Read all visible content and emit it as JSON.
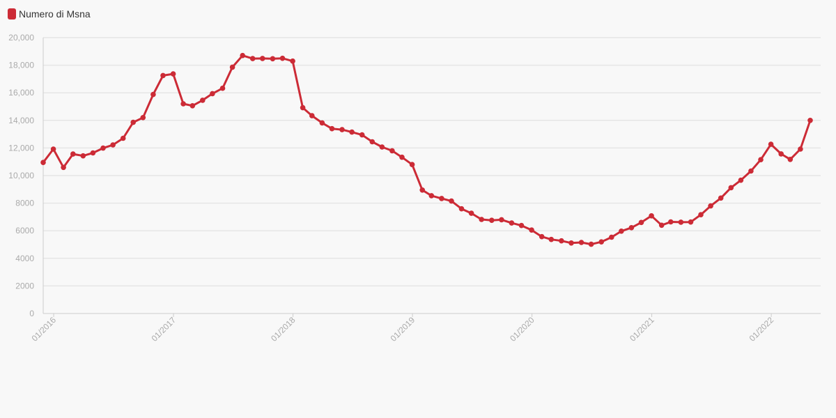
{
  "chart_data": {
    "type": "line",
    "legend_position": "top-left",
    "grid": true,
    "colors": {
      "series": "#cc2b36",
      "grid": "#e6e6e6",
      "axis": "#cccccc",
      "tick_text": "#aaaaaa"
    },
    "ylim": [
      0,
      20000
    ],
    "y_ticks": [
      0,
      2000,
      4000,
      6000,
      8000,
      10000,
      12000,
      14000,
      16000,
      18000,
      20000
    ],
    "y_tick_labels": [
      "0",
      "2000",
      "4000",
      "6000",
      "8000",
      "10,000",
      "12,000",
      "14,000",
      "16,000",
      "18,000",
      "20,000"
    ],
    "x_tick_labels": [
      "01/2016",
      "01/2017",
      "01/2018",
      "01/2019",
      "01/2020",
      "01/2021",
      "01/2022"
    ],
    "x_tick_dates": [
      "2016-01",
      "2017-01",
      "2018-01",
      "2019-01",
      "2020-01",
      "2021-01",
      "2022-01"
    ],
    "series": [
      {
        "name": "Numero di Msna",
        "points": [
          [
            "2015-11-30",
            10950
          ],
          [
            "2015-12-31",
            11920
          ],
          [
            "2016-01-31",
            10590
          ],
          [
            "2016-02-29",
            11560
          ],
          [
            "2016-03-31",
            11430
          ],
          [
            "2016-04-30",
            11640
          ],
          [
            "2016-05-31",
            11990
          ],
          [
            "2016-06-30",
            12220
          ],
          [
            "2016-07-31",
            12700
          ],
          [
            "2016-08-31",
            13860
          ],
          [
            "2016-09-30",
            14200
          ],
          [
            "2016-10-31",
            15880
          ],
          [
            "2016-11-30",
            17250
          ],
          [
            "2016-12-31",
            17370
          ],
          [
            "2017-01-31",
            15200
          ],
          [
            "2017-02-28",
            15060
          ],
          [
            "2017-03-31",
            15460
          ],
          [
            "2017-04-30",
            15940
          ],
          [
            "2017-05-31",
            16330
          ],
          [
            "2017-06-30",
            17860
          ],
          [
            "2017-07-31",
            18700
          ],
          [
            "2017-08-31",
            18480
          ],
          [
            "2017-09-30",
            18490
          ],
          [
            "2017-10-31",
            18470
          ],
          [
            "2017-11-30",
            18500
          ],
          [
            "2017-12-31",
            18300
          ],
          [
            "2018-01-31",
            14920
          ],
          [
            "2018-02-28",
            14340
          ],
          [
            "2018-03-31",
            13820
          ],
          [
            "2018-04-30",
            13400
          ],
          [
            "2018-05-31",
            13330
          ],
          [
            "2018-06-30",
            13150
          ],
          [
            "2018-07-31",
            12950
          ],
          [
            "2018-08-31",
            12450
          ],
          [
            "2018-09-30",
            12070
          ],
          [
            "2018-10-31",
            11800
          ],
          [
            "2018-11-30",
            11330
          ],
          [
            "2018-12-31",
            10800
          ],
          [
            "2019-01-31",
            8950
          ],
          [
            "2019-02-28",
            8540
          ],
          [
            "2019-03-31",
            8340
          ],
          [
            "2019-04-30",
            8150
          ],
          [
            "2019-05-31",
            7590
          ],
          [
            "2019-06-30",
            7270
          ],
          [
            "2019-07-31",
            6820
          ],
          [
            "2019-08-31",
            6760
          ],
          [
            "2019-09-30",
            6800
          ],
          [
            "2019-10-31",
            6560
          ],
          [
            "2019-11-30",
            6380
          ],
          [
            "2019-12-31",
            6050
          ],
          [
            "2020-01-31",
            5570
          ],
          [
            "2020-02-29",
            5370
          ],
          [
            "2020-03-31",
            5270
          ],
          [
            "2020-04-30",
            5110
          ],
          [
            "2020-05-31",
            5150
          ],
          [
            "2020-06-30",
            5020
          ],
          [
            "2020-07-31",
            5190
          ],
          [
            "2020-08-31",
            5530
          ],
          [
            "2020-09-30",
            5970
          ],
          [
            "2020-10-31",
            6220
          ],
          [
            "2020-11-30",
            6600
          ],
          [
            "2020-12-31",
            7080
          ],
          [
            "2021-01-31",
            6400
          ],
          [
            "2021-02-28",
            6640
          ],
          [
            "2021-03-31",
            6620
          ],
          [
            "2021-04-30",
            6630
          ],
          [
            "2021-05-31",
            7160
          ],
          [
            "2021-06-30",
            7800
          ],
          [
            "2021-07-31",
            8370
          ],
          [
            "2021-08-31",
            9120
          ],
          [
            "2021-09-30",
            9660
          ],
          [
            "2021-10-31",
            10330
          ],
          [
            "2021-11-30",
            11150
          ],
          [
            "2021-12-31",
            12270
          ],
          [
            "2022-01-31",
            11570
          ],
          [
            "2022-02-28",
            11170
          ],
          [
            "2022-03-31",
            11920
          ],
          [
            "2022-04-30",
            14000
          ]
        ]
      }
    ]
  }
}
